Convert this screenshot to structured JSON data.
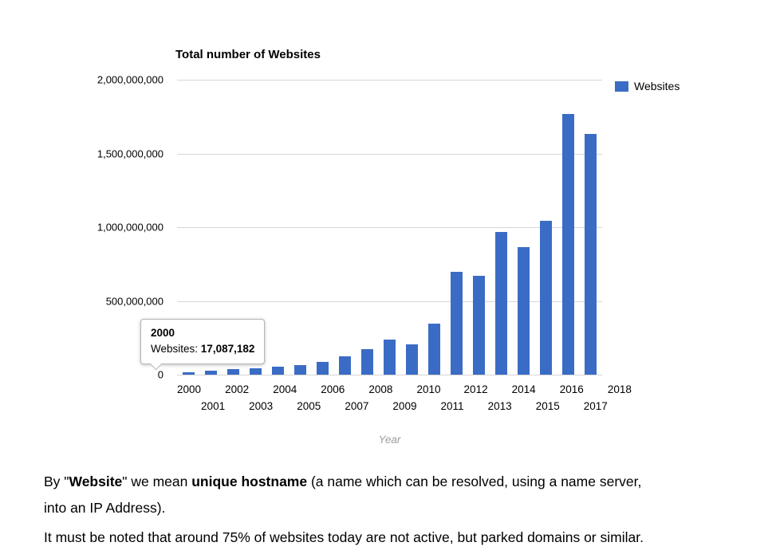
{
  "chart": {
    "title": "Total number of Websites",
    "legend_label": "Websites",
    "x_axis_title": "Year",
    "bar_color": "#3b6cc5",
    "y_ticks": [
      "2,000,000,000",
      "1,500,000,000",
      "1,000,000,000",
      "500,000,000",
      "0"
    ],
    "tooltip": {
      "year": "2000",
      "series_label": "Websites:",
      "value": "17,087,182"
    }
  },
  "chart_data": {
    "type": "bar",
    "title": "Total number of Websites",
    "xlabel": "Year",
    "ylabel": "",
    "ylim": [
      0,
      2000000000
    ],
    "grid": true,
    "legend": [
      "Websites"
    ],
    "legend_position": "right",
    "categories": [
      2000,
      2001,
      2002,
      2003,
      2004,
      2005,
      2006,
      2007,
      2008,
      2009,
      2010,
      2011,
      2012,
      2013,
      2014,
      2015,
      2016,
      2017,
      2018
    ],
    "values": [
      17087182,
      29254370,
      38760373,
      40912332,
      51611646,
      64780617,
      85507314,
      121892559,
      172338726,
      238027855,
      206956723,
      346004403,
      697089489,
      672985183,
      968882453,
      863105652,
      1045534808,
      1766926408,
      1630322579
    ]
  },
  "notes": {
    "p1": [
      {
        "t": "By \"",
        "b": false
      },
      {
        "t": "Website",
        "b": true
      },
      {
        "t": "\" we mean ",
        "b": false
      },
      {
        "t": "unique hostname",
        "b": true
      },
      {
        "t": " (a name which can be resolved, using a name server,",
        "b": false
      },
      {
        "br": true
      },
      {
        "t": "into an IP Address).",
        "b": false
      }
    ],
    "p2": [
      {
        "t": "It must be noted that around 75% of websites today are not active, but parked domains or similar.",
        "b": false
      }
    ]
  }
}
